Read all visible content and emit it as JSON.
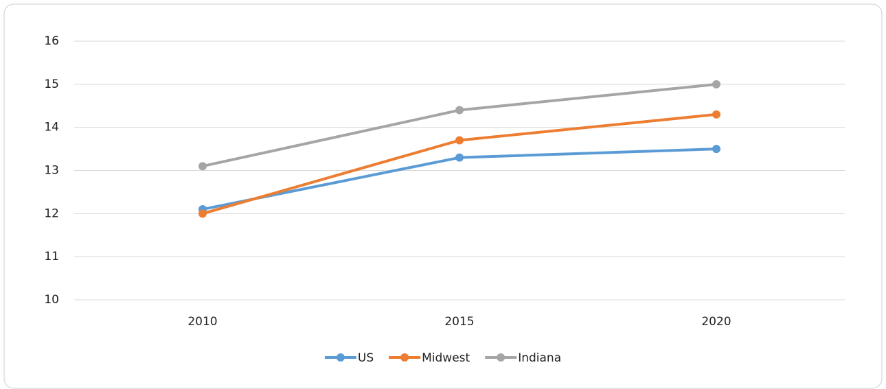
{
  "chart_data": {
    "type": "line",
    "categories": [
      "2010",
      "2015",
      "2020"
    ],
    "series": [
      {
        "name": "US",
        "color": "#5b9bd5",
        "values": [
          12.1,
          13.3,
          13.5
        ]
      },
      {
        "name": "Midwest",
        "color": "#ed7d31",
        "values": [
          12.0,
          13.7,
          14.3
        ]
      },
      {
        "name": "Indiana",
        "color": "#a5a5a5",
        "values": [
          13.1,
          14.4,
          15.0
        ]
      }
    ],
    "ylim": [
      10,
      16
    ],
    "yticks": [
      10,
      11,
      12,
      13,
      14,
      15,
      16
    ],
    "grid": true,
    "legend": "bottom"
  }
}
